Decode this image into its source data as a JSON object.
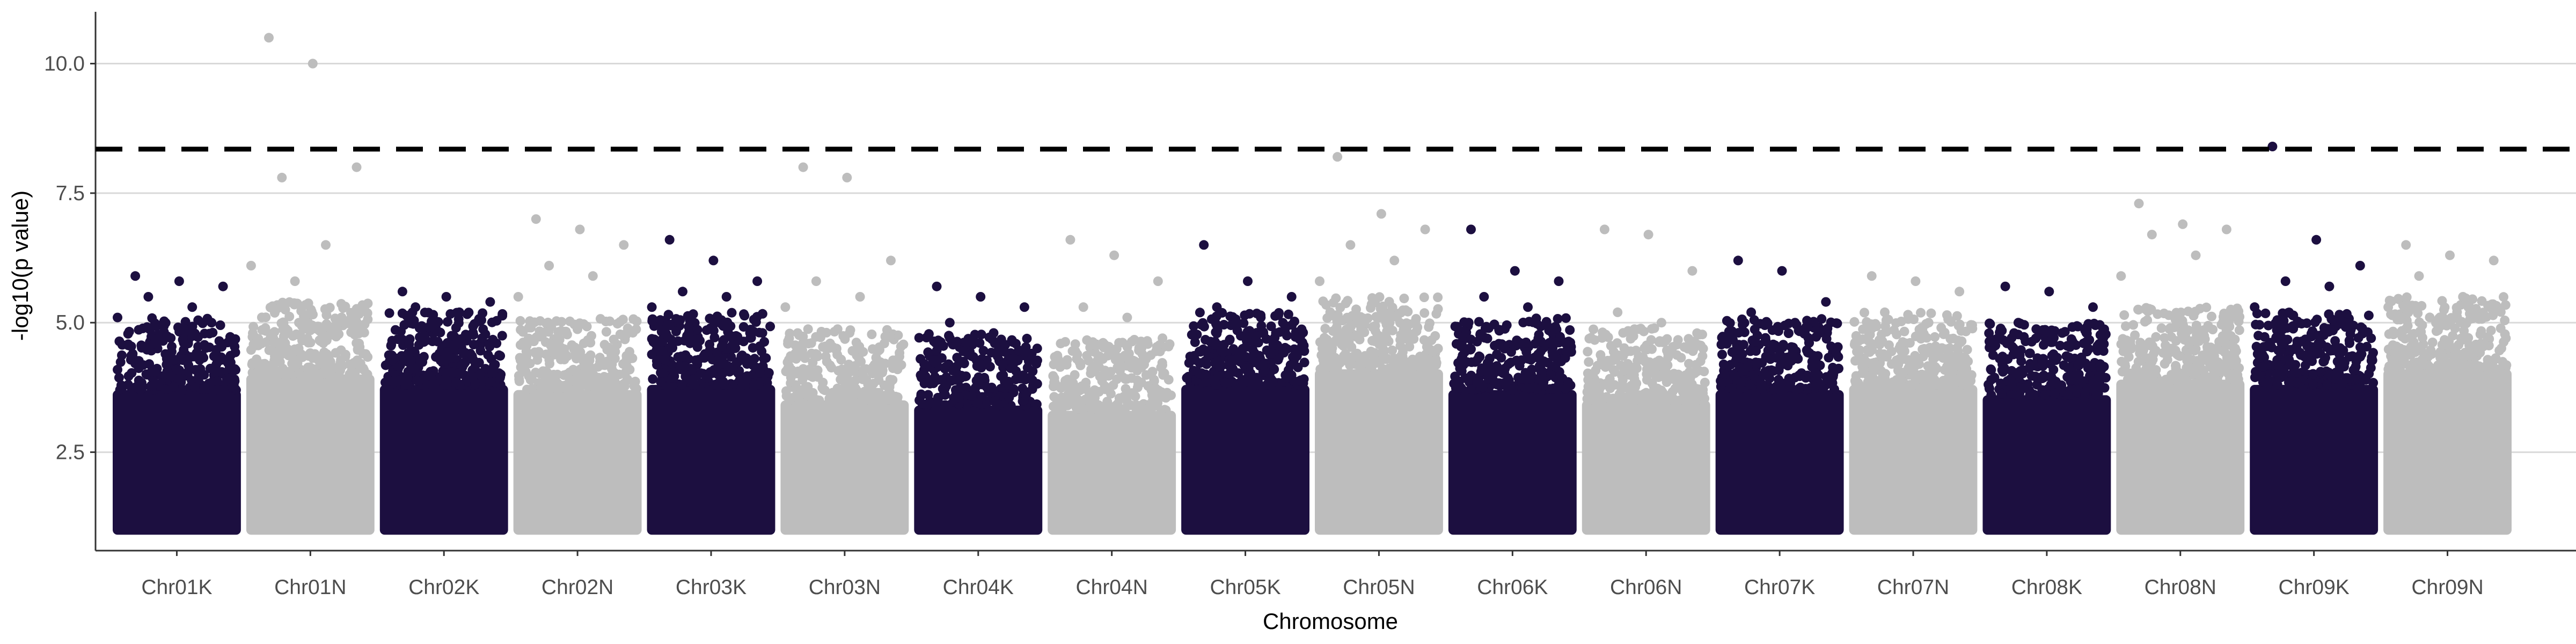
{
  "chart_data": {
    "type": "scatter",
    "title": "",
    "xlabel": "Chromosome",
    "ylabel": "-log10(p value)",
    "ylim": [
      0.6,
      11.0
    ],
    "y_ticks": [
      2.5,
      5.0,
      7.5,
      10.0
    ],
    "y_tick_labels": [
      "2.5",
      "5.0",
      "7.5",
      "10.0"
    ],
    "grid": "horizontal major",
    "legend": "none",
    "significance_threshold": 8.35,
    "colors": {
      "dark": "#1c0f40",
      "light": "#bdbdbd",
      "threshold": "#000000",
      "grid": "#d9d9d9",
      "axis": "#333333"
    },
    "categories": [
      "Chr01K",
      "Chr01N",
      "Chr02K",
      "Chr02N",
      "Chr03K",
      "Chr03N",
      "Chr04K",
      "Chr04N",
      "Chr05K",
      "Chr05N",
      "Chr06K",
      "Chr06N",
      "Chr07K",
      "Chr07N",
      "Chr08K",
      "Chr08N",
      "Chr09K",
      "Chr09N"
    ],
    "chromosomes": [
      {
        "name": "Chr01K",
        "color": "dark",
        "band_top": 4.2,
        "peaks": [
          5.9,
          5.8,
          5.7,
          5.5,
          5.3,
          5.1
        ]
      },
      {
        "name": "Chr01N",
        "color": "light",
        "band_top": 4.5,
        "peaks": [
          10.5,
          10.0,
          8.0,
          7.8,
          6.5,
          6.1,
          5.8
        ]
      },
      {
        "name": "Chr02K",
        "color": "dark",
        "band_top": 4.3,
        "peaks": [
          5.6,
          5.5,
          5.4,
          5.3,
          5.2
        ]
      },
      {
        "name": "Chr02N",
        "color": "light",
        "band_top": 4.2,
        "peaks": [
          7.0,
          6.8,
          6.5,
          6.1,
          5.9,
          5.5
        ]
      },
      {
        "name": "Chr03K",
        "color": "dark",
        "band_top": 4.3,
        "peaks": [
          6.6,
          6.2,
          5.8,
          5.6,
          5.5,
          5.3
        ]
      },
      {
        "name": "Chr03N",
        "color": "light",
        "band_top": 4.0,
        "peaks": [
          8.0,
          7.8,
          6.2,
          5.8,
          5.5,
          5.3
        ]
      },
      {
        "name": "Chr04K",
        "color": "dark",
        "band_top": 3.9,
        "peaks": [
          5.7,
          5.5,
          5.3,
          5.0,
          4.8
        ]
      },
      {
        "name": "Chr04N",
        "color": "light",
        "band_top": 3.8,
        "peaks": [
          6.6,
          6.3,
          5.8,
          5.3,
          5.1
        ]
      },
      {
        "name": "Chr05K",
        "color": "dark",
        "band_top": 4.3,
        "peaks": [
          6.5,
          5.8,
          5.5,
          5.3,
          5.1
        ]
      },
      {
        "name": "Chr05N",
        "color": "light",
        "band_top": 4.6,
        "peaks": [
          8.2,
          7.1,
          6.8,
          6.5,
          6.2,
          5.8
        ]
      },
      {
        "name": "Chr06K",
        "color": "dark",
        "band_top": 4.2,
        "peaks": [
          6.8,
          6.0,
          5.8,
          5.5,
          5.3
        ]
      },
      {
        "name": "Chr06N",
        "color": "light",
        "band_top": 4.0,
        "peaks": [
          6.8,
          6.7,
          6.0,
          5.2,
          5.0
        ]
      },
      {
        "name": "Chr07K",
        "color": "dark",
        "band_top": 4.2,
        "peaks": [
          6.2,
          6.0,
          5.4,
          5.2,
          5.0
        ]
      },
      {
        "name": "Chr07N",
        "color": "light",
        "band_top": 4.3,
        "peaks": [
          5.9,
          5.8,
          5.6,
          5.2,
          5.0
        ]
      },
      {
        "name": "Chr08K",
        "color": "dark",
        "band_top": 4.1,
        "peaks": [
          5.7,
          5.6,
          5.3,
          5.0,
          4.8
        ]
      },
      {
        "name": "Chr08N",
        "color": "light",
        "band_top": 4.4,
        "peaks": [
          7.3,
          6.9,
          6.8,
          6.7,
          6.3,
          5.9
        ]
      },
      {
        "name": "Chr09K",
        "color": "dark",
        "band_top": 4.3,
        "peaks": [
          8.4,
          6.6,
          6.1,
          5.8,
          5.7,
          5.3
        ]
      },
      {
        "name": "Chr09N",
        "color": "light",
        "band_top": 4.6,
        "peaks": [
          6.5,
          6.3,
          6.2,
          5.9,
          5.5,
          5.3
        ]
      }
    ]
  }
}
